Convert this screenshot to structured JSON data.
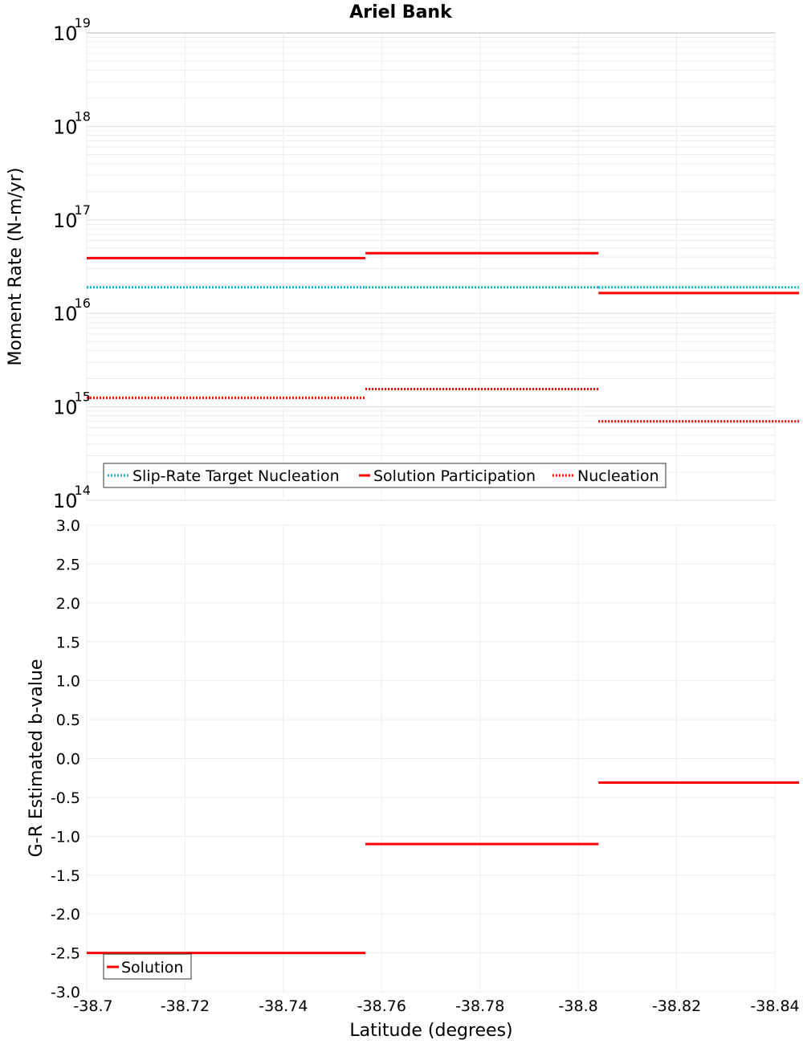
{
  "chart_data": [
    {
      "type": "line",
      "title": "Ariel Bank",
      "xlabel": "Latitude (degrees)",
      "ylabel": "Moment Rate (N-m/yr)",
      "yscale": "log",
      "ylim": [
        100000000000000.0,
        1e+19
      ],
      "xlim": [
        -38.7,
        -38.84
      ],
      "y_ticks": [
        {
          "base": "10",
          "exp": "14"
        },
        {
          "base": "10",
          "exp": "15"
        },
        {
          "base": "10",
          "exp": "16"
        },
        {
          "base": "10",
          "exp": "17"
        },
        {
          "base": "10",
          "exp": "18"
        },
        {
          "base": "10",
          "exp": "19"
        }
      ],
      "series": [
        {
          "name": "Slip-Rate Target Nucleation",
          "color": "#00b4c8",
          "style": "dotted",
          "segments": [
            {
              "x0": -38.7,
              "x1": -38.7567,
              "y": 1.9e+16
            },
            {
              "x0": -38.7567,
              "x1": -38.8041,
              "y": 1.9e+16
            },
            {
              "x0": -38.8041,
              "x1": -38.8449,
              "y": 1.9e+16
            }
          ]
        },
        {
          "name": "Solution Participation",
          "color": "#ff0000",
          "style": "solid",
          "segments": [
            {
              "x0": -38.7,
              "x1": -38.7567,
              "y": 3.9e+16
            },
            {
              "x0": -38.7567,
              "x1": -38.8041,
              "y": 4.4e+16
            },
            {
              "x0": -38.8041,
              "x1": -38.8449,
              "y": 1.65e+16
            }
          ]
        },
        {
          "name": "Nucleation",
          "color": "#ff0000",
          "style": "dotted",
          "segments": [
            {
              "x0": -38.7,
              "x1": -38.7567,
              "y": 1250000000000000.0
            },
            {
              "x0": -38.7567,
              "x1": -38.8041,
              "y": 1550000000000000.0
            },
            {
              "x0": -38.8041,
              "x1": -38.8449,
              "y": 700000000000000.0
            }
          ]
        }
      ],
      "legend": [
        "Slip-Rate Target Nucleation",
        "Solution Participation",
        "Nucleation"
      ],
      "legend_position": "bottom-left",
      "grid": true
    },
    {
      "type": "line",
      "title": "",
      "xlabel": "Latitude (degrees)",
      "ylabel": "G-R Estimated b-value",
      "ylim": [
        -3.0,
        3.0
      ],
      "xlim": [
        -38.7,
        -38.84
      ],
      "y_ticks": [
        "3.0",
        "2.5",
        "2.0",
        "1.5",
        "1.0",
        "0.5",
        "0.0",
        "-0.5",
        "-1.0",
        "-1.5",
        "-2.0",
        "-2.5",
        "-3.0"
      ],
      "x_ticks": [
        "-38.7",
        "-38.72",
        "-38.74",
        "-38.76",
        "-38.78",
        "-38.8",
        "-38.82",
        "-38.84"
      ],
      "series": [
        {
          "name": "Solution",
          "color": "#ff0000",
          "style": "solid",
          "segments": [
            {
              "x0": -38.7,
              "x1": -38.7567,
              "y": -2.5
            },
            {
              "x0": -38.7567,
              "x1": -38.8041,
              "y": -1.1
            },
            {
              "x0": -38.8041,
              "x1": -38.8449,
              "y": -0.31
            }
          ]
        }
      ],
      "legend": [
        "Solution"
      ],
      "legend_position": "bottom-left",
      "grid": true
    }
  ]
}
